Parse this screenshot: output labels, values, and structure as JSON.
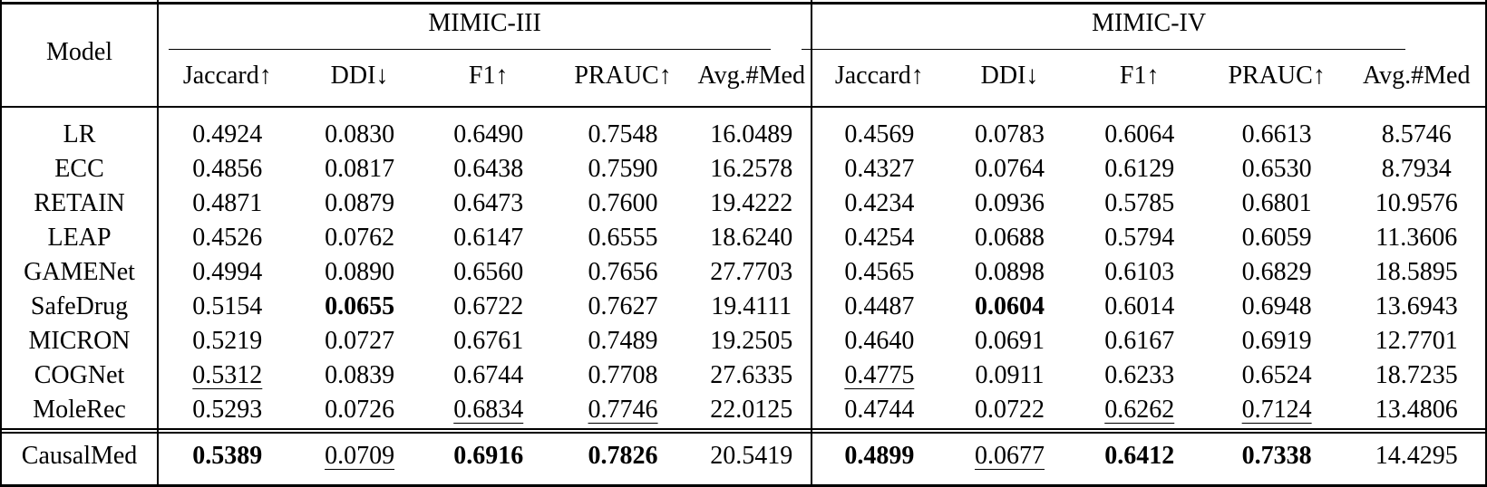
{
  "table": {
    "model_header": "Model",
    "groups": [
      {
        "name": "MIMIC-III"
      },
      {
        "name": "MIMIC-IV"
      }
    ],
    "metrics": [
      "Jaccard↑",
      "DDI↓",
      "F1↑",
      "PRAUC↑",
      "Avg.#Med"
    ],
    "rows": [
      {
        "model": "LR",
        "values": [
          "0.4924",
          "0.0830",
          "0.6490",
          "0.7548",
          "16.0489",
          "0.4569",
          "0.0783",
          "0.6064",
          "0.6613",
          "8.5746"
        ],
        "styles": [
          "",
          "",
          "",
          "",
          "",
          "",
          "",
          "",
          "",
          ""
        ]
      },
      {
        "model": "ECC",
        "values": [
          "0.4856",
          "0.0817",
          "0.6438",
          "0.7590",
          "16.2578",
          "0.4327",
          "0.0764",
          "0.6129",
          "0.6530",
          "8.7934"
        ],
        "styles": [
          "",
          "",
          "",
          "",
          "",
          "",
          "",
          "",
          "",
          ""
        ]
      },
      {
        "model": "RETAIN",
        "values": [
          "0.4871",
          "0.0879",
          "0.6473",
          "0.7600",
          "19.4222",
          "0.4234",
          "0.0936",
          "0.5785",
          "0.6801",
          "10.9576"
        ],
        "styles": [
          "",
          "",
          "",
          "",
          "",
          "",
          "",
          "",
          "",
          ""
        ]
      },
      {
        "model": "LEAP",
        "values": [
          "0.4526",
          "0.0762",
          "0.6147",
          "0.6555",
          "18.6240",
          "0.4254",
          "0.0688",
          "0.5794",
          "0.6059",
          "11.3606"
        ],
        "styles": [
          "",
          "",
          "",
          "",
          "",
          "",
          "",
          "",
          "",
          ""
        ]
      },
      {
        "model": "GAMENet",
        "values": [
          "0.4994",
          "0.0890",
          "0.6560",
          "0.7656",
          "27.7703",
          "0.4565",
          "0.0898",
          "0.6103",
          "0.6829",
          "18.5895"
        ],
        "styles": [
          "",
          "",
          "",
          "",
          "",
          "",
          "",
          "",
          "",
          ""
        ]
      },
      {
        "model": "SafeDrug",
        "values": [
          "0.5154",
          "0.0655",
          "0.6722",
          "0.7627",
          "19.4111",
          "0.4487",
          "0.0604",
          "0.6014",
          "0.6948",
          "13.6943"
        ],
        "styles": [
          "",
          "bold",
          "",
          "",
          "",
          "",
          "bold",
          "",
          "",
          ""
        ]
      },
      {
        "model": "MICRON",
        "values": [
          "0.5219",
          "0.0727",
          "0.6761",
          "0.7489",
          "19.2505",
          "0.4640",
          "0.0691",
          "0.6167",
          "0.6919",
          "12.7701"
        ],
        "styles": [
          "",
          "",
          "",
          "",
          "",
          "",
          "",
          "",
          "",
          ""
        ]
      },
      {
        "model": "COGNet",
        "values": [
          "0.5312",
          "0.0839",
          "0.6744",
          "0.7708",
          "27.6335",
          "0.4775",
          "0.0911",
          "0.6233",
          "0.6524",
          "18.7235"
        ],
        "styles": [
          "underline",
          "",
          "",
          "",
          "",
          "underline",
          "",
          "",
          "",
          ""
        ]
      },
      {
        "model": "MoleRec",
        "values": [
          "0.5293",
          "0.0726",
          "0.6834",
          "0.7746",
          "22.0125",
          "0.4744",
          "0.0722",
          "0.6262",
          "0.7124",
          "13.4806"
        ],
        "styles": [
          "",
          "",
          "underline",
          "underline",
          "",
          "",
          "",
          "underline",
          "underline",
          ""
        ]
      }
    ],
    "final_row": {
      "model": "CausalMed",
      "values": [
        "0.5389",
        "0.0709",
        "0.6916",
        "0.7826",
        "20.5419",
        "0.4899",
        "0.0677",
        "0.6412",
        "0.7338",
        "14.4295"
      ],
      "styles": [
        "bold",
        "underline",
        "bold",
        "bold",
        "",
        "bold",
        "underline",
        "bold",
        "bold",
        ""
      ]
    }
  }
}
